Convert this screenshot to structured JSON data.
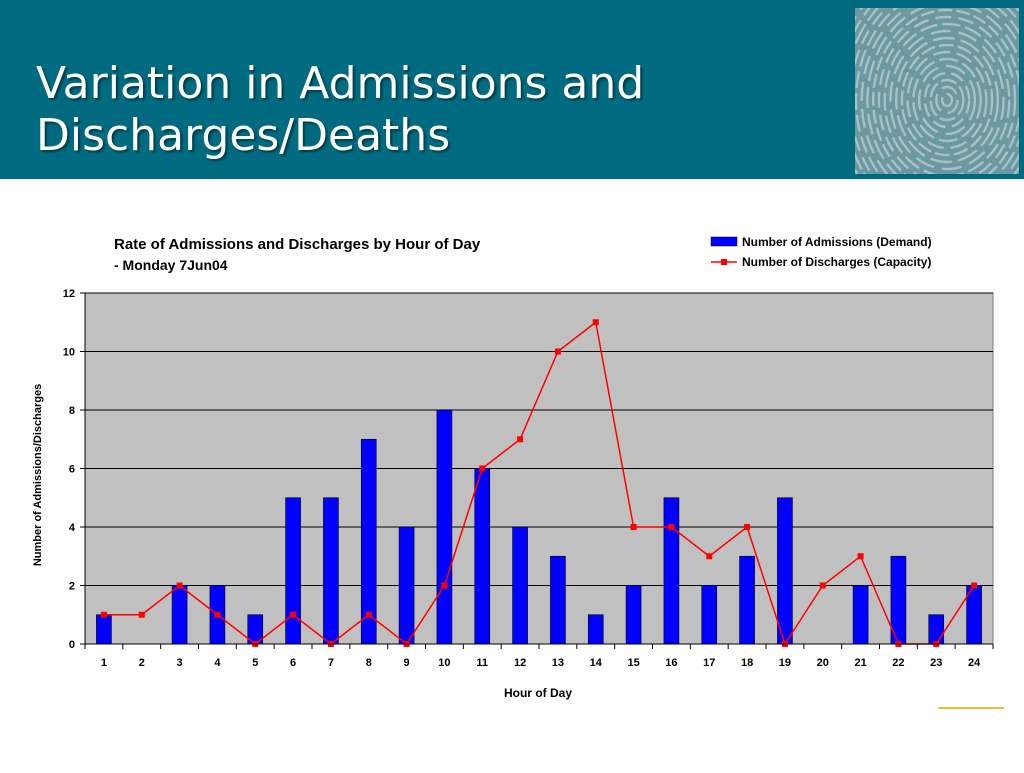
{
  "slide": {
    "title_line1": "Variation in Admissions and",
    "title_line2": "Discharges/Deaths",
    "decoration_icon": "thumbprint-icon"
  },
  "colors": {
    "header_bg": "#006b80",
    "plot_bg": "#c0c0c0",
    "bar": "#0000ff",
    "line": "#ff0000",
    "accent": "#f5b63c"
  },
  "chart_data": {
    "type": "bar",
    "title": "Rate of Admissions and Discharges by Hour of Day",
    "subtitle": "- Monday 7Jun04",
    "xlabel": "Hour of Day",
    "ylabel": "Number of Admissions/Discharges",
    "ylim": [
      0,
      12
    ],
    "yticks": [
      0,
      2,
      4,
      6,
      8,
      10,
      12
    ],
    "grid": true,
    "legend_position": "top-right",
    "categories": [
      "1",
      "2",
      "3",
      "4",
      "5",
      "6",
      "7",
      "8",
      "9",
      "10",
      "11",
      "12",
      "13",
      "14",
      "15",
      "16",
      "17",
      "18",
      "19",
      "20",
      "21",
      "22",
      "23",
      "24"
    ],
    "series": [
      {
        "name": "Number of Admissions (Demand)",
        "type": "bar",
        "values": [
          1,
          0,
          2,
          2,
          1,
          5,
          5,
          7,
          4,
          8,
          6,
          4,
          3,
          1,
          2,
          5,
          2,
          3,
          5,
          0,
          2,
          3,
          1,
          2
        ]
      },
      {
        "name": "Number of Discharges (Capacity)",
        "type": "line",
        "values": [
          1,
          1,
          2,
          1,
          0,
          1,
          0,
          1,
          0,
          2,
          6,
          7,
          10,
          11,
          4,
          4,
          3,
          4,
          0,
          2,
          3,
          0,
          0,
          2
        ]
      }
    ]
  }
}
